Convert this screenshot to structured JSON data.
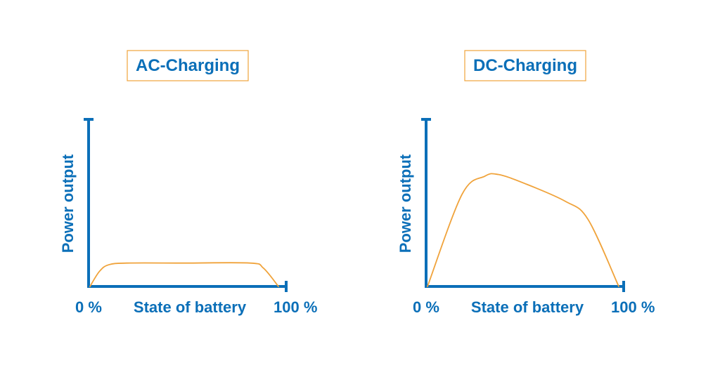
{
  "chart_data": [
    {
      "type": "line",
      "title": "AC-Charging",
      "xlabel": "State of battery",
      "ylabel": "Power output",
      "x_tick_labels": [
        "0 %",
        "100 %"
      ],
      "xlim": [
        0,
        100
      ],
      "ylim": [
        0,
        100
      ],
      "grid": false,
      "line_color": "#f0a33b",
      "axis_color": "#0b6fb8",
      "series": [
        {
          "values": [
            {
              "x": 0,
              "y": 0
            },
            {
              "x": 5,
              "y": 9
            },
            {
              "x": 10,
              "y": 13
            },
            {
              "x": 20,
              "y": 14
            },
            {
              "x": 50,
              "y": 14
            },
            {
              "x": 85,
              "y": 14
            },
            {
              "x": 92,
              "y": 11
            },
            {
              "x": 100,
              "y": 0
            }
          ]
        }
      ]
    },
    {
      "type": "line",
      "title": "DC-Charging",
      "xlabel": "State of battery",
      "ylabel": "Power output",
      "x_tick_labels": [
        "0 %",
        "100 %"
      ],
      "xlim": [
        0,
        100
      ],
      "ylim": [
        0,
        100
      ],
      "grid": false,
      "line_color": "#f0a33b",
      "axis_color": "#0b6fb8",
      "series": [
        {
          "values": [
            {
              "x": 0,
              "y": 0
            },
            {
              "x": 18,
              "y": 55
            },
            {
              "x": 30,
              "y": 66
            },
            {
              "x": 37,
              "y": 67
            },
            {
              "x": 50,
              "y": 62
            },
            {
              "x": 72,
              "y": 51
            },
            {
              "x": 84,
              "y": 40
            },
            {
              "x": 100,
              "y": 0
            }
          ]
        }
      ]
    }
  ]
}
